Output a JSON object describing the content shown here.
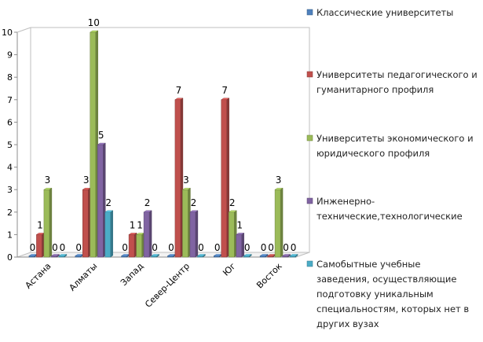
{
  "chart_data": {
    "type": "bar",
    "categories": [
      "Астана",
      "Алматы",
      "Запад",
      "Север-Центр",
      "Юг",
      "Восток"
    ],
    "ylim": [
      0,
      10
    ],
    "yticks": [
      0,
      1,
      2,
      3,
      4,
      5,
      6,
      7,
      8,
      9,
      10
    ],
    "grid": false,
    "legend_position": "right",
    "series": [
      {
        "name": "Классические университеты",
        "color": "#4f81bd",
        "values": [
          0,
          0,
          0,
          0,
          0,
          0
        ]
      },
      {
        "name": "Университеты педагогического и гуманитарного профиля",
        "color": "#c0504d",
        "values": [
          1,
          3,
          1,
          7,
          7,
          0
        ]
      },
      {
        "name": "Университеты экономического и юридического профиля",
        "color": "#9bbb59",
        "values": [
          3,
          10,
          1,
          3,
          2,
          3
        ]
      },
      {
        "name": "Инженерно-технические,технологические",
        "color": "#8064a2",
        "values": [
          0,
          5,
          2,
          2,
          1,
          0
        ]
      },
      {
        "name": "Самобытные учебные заведения, осуществляющие подготовку уникальным специальностям, которых нет в других вузах",
        "color": "#4bacc6",
        "values": [
          0,
          2,
          0,
          0,
          0,
          0
        ]
      }
    ],
    "legend_lines": [
      [
        "Классические университеты"
      ],
      [
        "Университеты педагогического и",
        "гуманитарного профиля"
      ],
      [
        "Университеты экономического и",
        "юридического профиля"
      ],
      [
        "Инженерно-",
        "технические,технологические"
      ],
      [
        "Самобытные учебные",
        "заведения, осуществляющие",
        "подготовку уникальным",
        "специальностям, которых нет в",
        "других вузах"
      ]
    ]
  }
}
